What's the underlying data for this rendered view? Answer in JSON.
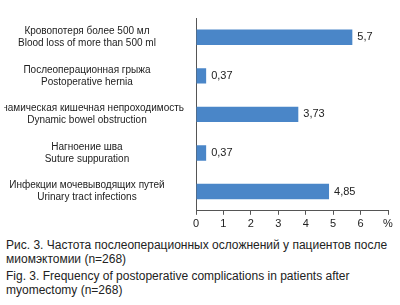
{
  "chart_data": {
    "type": "bar",
    "orientation": "horizontal",
    "title": "Рис. 3. Частота послеоперационных осложнений у пациентов после миомэктомии (n=268)",
    "subtitle": "Fig. 3. Frequency of postoperative complications in patients after myomectomy (n=268)",
    "categories": [
      [
        "Кровопотеря более 500 мл",
        "Blood loss of more than 500 ml"
      ],
      [
        "Послеоперационная грыжа",
        "Postoperative hernia"
      ],
      [
        "Динамическая кишечная непроходимость",
        "Dynamic bowel obstruction"
      ],
      [
        "Нагноение шва",
        "Suture suppuration"
      ],
      [
        "Инфекции мочевыводящих путей",
        "Urinary tract infections"
      ]
    ],
    "values": [
      5.7,
      0.37,
      3.73,
      0.37,
      4.85
    ],
    "value_labels": [
      "5,7",
      "0,37",
      "3,73",
      "0,37",
      "4,85"
    ],
    "data_labels": true,
    "color": "#4a86c8",
    "xlim": [
      0,
      7
    ],
    "xticks": [
      0,
      1,
      2,
      3,
      4,
      5,
      6,
      {
        "value": 7,
        "label": "%"
      }
    ],
    "grid": false
  }
}
